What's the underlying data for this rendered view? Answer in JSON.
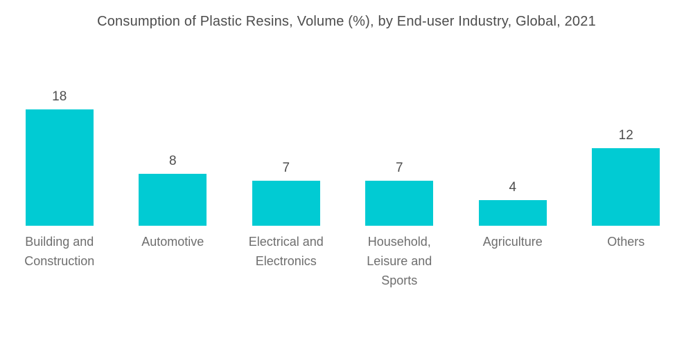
{
  "title": "Consumption of Plastic Resins, Volume (%), by End-user Industry, Global, 2021",
  "colors": {
    "bar": "#01cbd3",
    "title_text": "#4c4c4c",
    "value_text": "#4d4d4d",
    "category_text": "#6e6e6e",
    "background": "#ffffff"
  },
  "chart_data": {
    "type": "bar",
    "title": "Consumption of Plastic Resins, Volume (%), by End-user Industry, Global, 2021",
    "categories": [
      "Building and\nConstruction",
      "Automotive",
      "Electrical and\nElectronics",
      "Household,\nLeisure and\nSports",
      "Agriculture",
      "Others"
    ],
    "values": [
      18,
      8,
      7,
      7,
      4,
      12
    ],
    "xlabel": "",
    "ylabel": "Volume (%)",
    "ylim": [
      0,
      18
    ],
    "grid": false,
    "legend": "none",
    "value_labels": "above-bars",
    "axes_visible": false
  }
}
